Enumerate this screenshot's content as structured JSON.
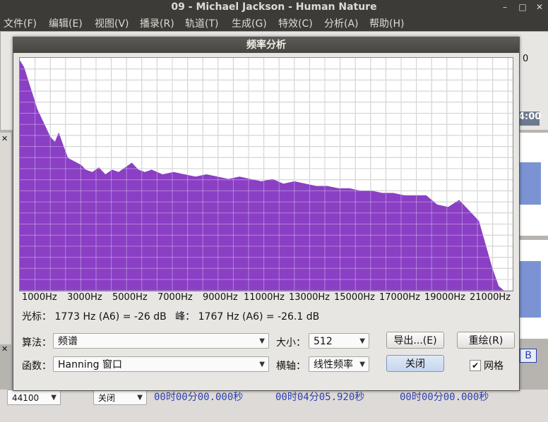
{
  "window": {
    "title": "09 - Michael Jackson - Human Nature"
  },
  "menu": [
    "文件(F)",
    "编辑(E)",
    "视图(V)",
    "播录(R)",
    "轨道(T)",
    "生成(G)",
    "特效(C)",
    "分析(A)",
    "帮助(H)"
  ],
  "dialog": {
    "title": "频率分析",
    "x_axis_labels": [
      "1000Hz",
      "3000Hz",
      "5000Hz",
      "7000Hz",
      "9000Hz",
      "11000Hz",
      "13000Hz",
      "15000Hz",
      "17000Hz",
      "19000Hz",
      "21000Hz"
    ],
    "cursor_label": "光标：",
    "cursor_value": "1773 Hz (A6) = -26 dB",
    "peak_label": "峰：",
    "peak_value": "1767 Hz (A6) = -26.1 dB",
    "algorithm_label": "算法：",
    "algorithm_value": "频谱",
    "size_label": "大小：",
    "size_value": "512",
    "function_label": "函数：",
    "function_value": "Hanning 窗口",
    "axis_label": "横轴：",
    "axis_value": "线性频率",
    "export_button": "导出...(E)",
    "replot_button": "重绘(R)",
    "close_button": "关闭",
    "grid_label": "网格",
    "grid_checked": true
  },
  "chart_data": {
    "type": "area",
    "color": "#8a3fc4",
    "x_unit": "Hz",
    "x": [
      0,
      200,
      400,
      600,
      800,
      1000,
      1200,
      1400,
      1600,
      1773,
      2000,
      2200,
      2400,
      2600,
      2800,
      3000,
      3300,
      3600,
      3900,
      4200,
      4500,
      4800,
      5100,
      5400,
      5700,
      6000,
      6500,
      7000,
      7500,
      8000,
      8500,
      9000,
      9500,
      10000,
      10500,
      11000,
      11500,
      12000,
      12500,
      13000,
      13500,
      14000,
      14500,
      15000,
      15500,
      16000,
      16500,
      17000,
      17500,
      18000,
      18500,
      19000,
      19500,
      20000,
      20300,
      20600,
      20900,
      21200,
      21500,
      21800,
      22050
    ],
    "y_fraction": [
      0.99,
      0.96,
      0.9,
      0.84,
      0.78,
      0.74,
      0.7,
      0.66,
      0.64,
      0.68,
      0.62,
      0.57,
      0.56,
      0.55,
      0.54,
      0.52,
      0.51,
      0.53,
      0.5,
      0.52,
      0.51,
      0.53,
      0.55,
      0.52,
      0.51,
      0.52,
      0.5,
      0.51,
      0.5,
      0.49,
      0.5,
      0.49,
      0.48,
      0.49,
      0.48,
      0.47,
      0.48,
      0.46,
      0.47,
      0.46,
      0.45,
      0.45,
      0.44,
      0.44,
      0.43,
      0.43,
      0.42,
      0.42,
      0.41,
      0.41,
      0.41,
      0.37,
      0.36,
      0.39,
      0.36,
      0.33,
      0.3,
      0.2,
      0.1,
      0.02,
      0.0
    ],
    "x_range": [
      0,
      22050
    ],
    "grid": true
  },
  "background": {
    "right_toolbar_value": "0",
    "right_time": "4:00",
    "format_rate": "44100",
    "snap_value": "关闭",
    "sel_start": "00时00分00.000秒",
    "sel_end": "00时04分05.920秒",
    "audio_pos": "00时00分00.000秒",
    "track_mode_b": "B"
  }
}
